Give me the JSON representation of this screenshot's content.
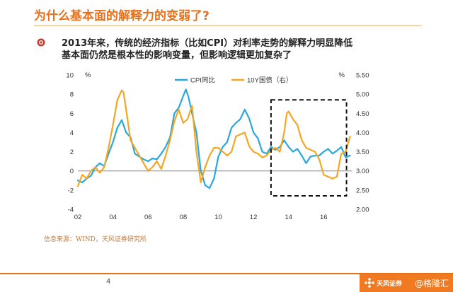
{
  "slide": {
    "title": "为什么基本面的解释力的变弱了?",
    "bullet_line1": "2013年来，传统的经济指标（比如CPI）对利率走势的解释力明显降低",
    "bullet_line2": "基本面仍然是根本性的影响变量，但影响逻辑更加复杂了",
    "source": "信息来源：WIND，天风证券研究所",
    "page_number": "4",
    "brand": "天风证券",
    "watermark": "@格隆汇"
  },
  "colors": {
    "accent": "#e8701a",
    "cpi_series": "#29a8e0",
    "bond_series": "#f5a623"
  },
  "chart_data": {
    "type": "line",
    "left_axis": {
      "unit": "%",
      "ylim": [
        -4,
        10
      ],
      "ticks": [
        "-4",
        "-2",
        "0",
        "2",
        "4",
        "6",
        "8",
        "10"
      ]
    },
    "right_axis": {
      "unit": "%",
      "ylim": [
        2.0,
        5.5
      ],
      "ticks": [
        "2.00",
        "2.50",
        "3.00",
        "3.50",
        "4.00",
        "4.50",
        "5.00",
        "5.50"
      ]
    },
    "x_ticks": [
      "02",
      "04",
      "06",
      "08",
      "10",
      "12",
      "14",
      "16"
    ],
    "x_tick_years": [
      2002,
      2004,
      2006,
      2008,
      2010,
      2012,
      2014,
      2016
    ],
    "xlim": [
      2002,
      2017.6
    ],
    "legend": {
      "placement": "top-center"
    },
    "highlight_box": {
      "x_range": [
        2013.0,
        2017.3
      ],
      "right_axis_range": [
        2.35,
        4.85
      ],
      "style": "dashed"
    },
    "series": [
      {
        "name": "CPI同比",
        "axis": "left",
        "x": [
          2002.0,
          2002.25,
          2002.5,
          2002.75,
          2003.0,
          2003.25,
          2003.5,
          2003.75,
          2004.0,
          2004.25,
          2004.5,
          2004.75,
          2005.0,
          2005.25,
          2005.5,
          2005.75,
          2006.0,
          2006.25,
          2006.5,
          2006.75,
          2007.0,
          2007.25,
          2007.5,
          2007.75,
          2008.0,
          2008.15,
          2008.3,
          2008.5,
          2008.75,
          2009.0,
          2009.25,
          2009.5,
          2009.75,
          2010.0,
          2010.25,
          2010.5,
          2010.75,
          2011.0,
          2011.25,
          2011.5,
          2011.75,
          2012.0,
          2012.25,
          2012.5,
          2012.75,
          2013.0,
          2013.25,
          2013.5,
          2013.75,
          2014.0,
          2014.25,
          2014.5,
          2014.75,
          2015.0,
          2015.25,
          2015.5,
          2015.75,
          2016.0,
          2016.25,
          2016.5,
          2016.75,
          2017.0,
          2017.25,
          2017.5
        ],
        "values": [
          -1.0,
          -1.2,
          -0.8,
          -0.5,
          0.4,
          0.8,
          0.5,
          1.8,
          3.0,
          4.5,
          5.3,
          4.0,
          3.5,
          1.8,
          1.5,
          1.2,
          1.0,
          1.3,
          1.2,
          1.8,
          2.5,
          3.5,
          6.0,
          6.6,
          7.8,
          8.5,
          7.7,
          6.0,
          4.0,
          0.0,
          -1.5,
          -1.8,
          -0.8,
          1.5,
          2.5,
          3.0,
          4.5,
          5.0,
          5.4,
          6.4,
          5.5,
          4.0,
          3.4,
          2.0,
          1.8,
          2.5,
          2.2,
          2.5,
          3.2,
          2.5,
          2.0,
          2.3,
          1.6,
          0.8,
          1.5,
          1.6,
          1.6,
          2.0,
          2.3,
          1.8,
          2.1,
          2.5,
          1.4,
          1.6
        ]
      },
      {
        "name": "10Y国债（右）",
        "axis": "right",
        "x": [
          2002.0,
          2002.25,
          2002.5,
          2002.75,
          2003.0,
          2003.25,
          2003.5,
          2003.75,
          2004.0,
          2004.25,
          2004.5,
          2004.6,
          2004.75,
          2005.0,
          2005.25,
          2005.5,
          2005.75,
          2006.0,
          2006.25,
          2006.5,
          2006.75,
          2007.0,
          2007.25,
          2007.5,
          2007.75,
          2008.0,
          2008.25,
          2008.5,
          2008.75,
          2009.0,
          2009.25,
          2009.5,
          2009.75,
          2010.0,
          2010.25,
          2010.5,
          2010.75,
          2011.0,
          2011.25,
          2011.5,
          2011.75,
          2012.0,
          2012.25,
          2012.5,
          2012.75,
          2013.0,
          2013.25,
          2013.5,
          2013.75,
          2013.9,
          2014.0,
          2014.25,
          2014.5,
          2014.75,
          2015.0,
          2015.25,
          2015.5,
          2015.75,
          2016.0,
          2016.25,
          2016.5,
          2016.75,
          2017.0,
          2017.25,
          2017.5
        ],
        "values": [
          2.6,
          2.9,
          2.8,
          3.0,
          3.1,
          2.95,
          3.1,
          3.6,
          4.2,
          4.85,
          5.1,
          5.05,
          4.6,
          3.8,
          3.6,
          3.4,
          3.2,
          3.0,
          3.1,
          3.25,
          3.05,
          3.4,
          3.8,
          4.3,
          4.6,
          4.25,
          4.35,
          4.7,
          3.5,
          2.7,
          3.1,
          3.4,
          3.6,
          3.6,
          3.5,
          3.4,
          3.5,
          3.9,
          3.95,
          4.0,
          3.65,
          3.5,
          3.45,
          3.35,
          3.4,
          3.55,
          3.6,
          3.5,
          4.0,
          4.5,
          4.55,
          4.35,
          4.2,
          3.8,
          3.6,
          3.55,
          3.5,
          3.3,
          2.9,
          2.85,
          2.8,
          2.85,
          3.45,
          3.5,
          3.9
        ]
      }
    ]
  }
}
